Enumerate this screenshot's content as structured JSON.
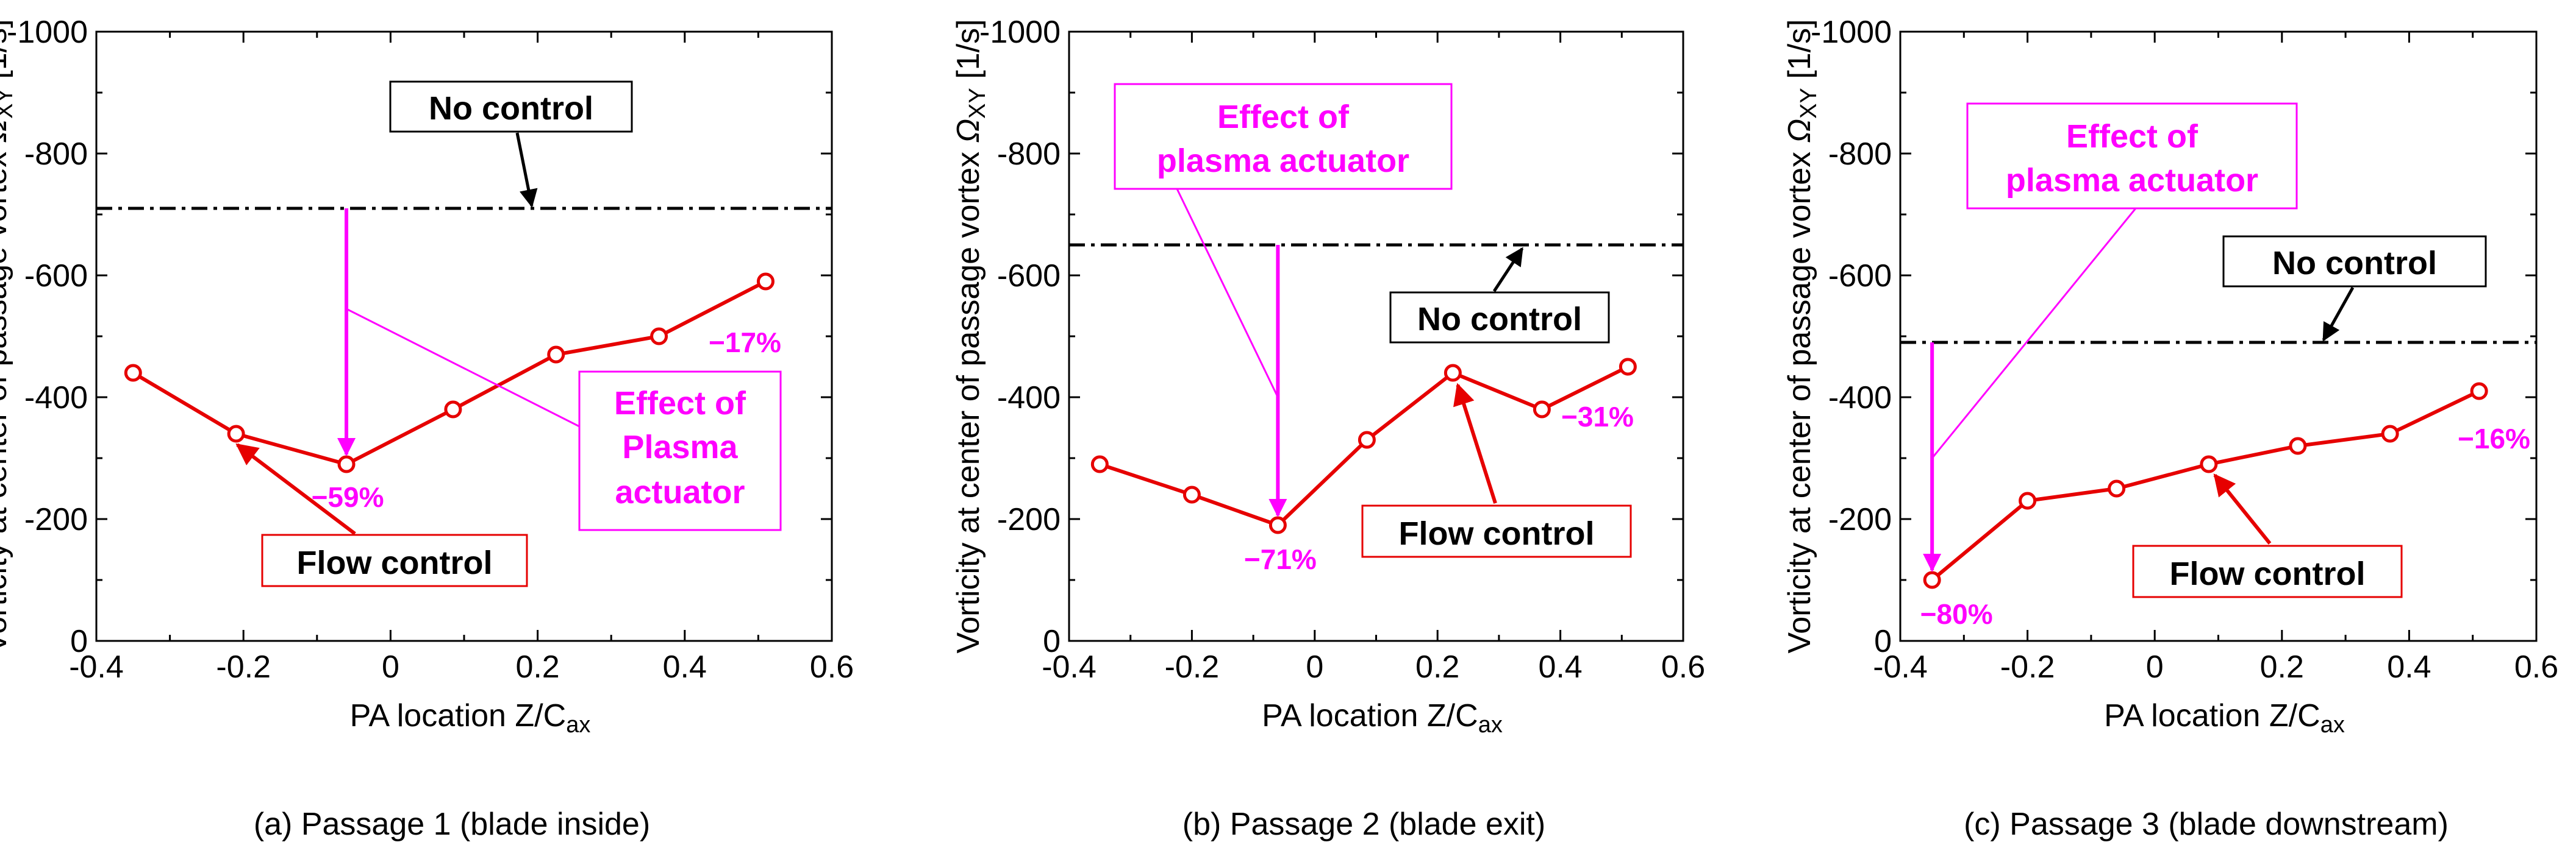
{
  "figure": {
    "colors": {
      "flow_control": "#e60000",
      "effect": "#ff00ff",
      "no_control": "#000000",
      "axes": "#000000"
    },
    "xlabel": "PA location Z/C",
    "xlabel_sub": "ax",
    "ylabel": "Vorticity at center of passage vortex",
    "ylabel_symbol": "Ω",
    "ylabel_sub": "XY",
    "ylabel_unit": "[1/s]"
  },
  "chart_data": [
    {
      "type": "line",
      "title": "(a) Passage 1 (blade inside)",
      "x": [
        -0.35,
        -0.21,
        -0.06,
        0.085,
        0.225,
        0.365,
        0.51
      ],
      "y": [
        -440,
        -340,
        -290,
        -380,
        -470,
        -500,
        -590
      ],
      "xlim": [
        -0.4,
        0.6
      ],
      "ylim": [
        0,
        -1000
      ],
      "xticks": [
        "-0.4",
        "-0.2",
        "0",
        "0.2",
        "0.4",
        "0.6"
      ],
      "yticks": [
        "0",
        "-200",
        "-400",
        "-600",
        "-800",
        "-1000"
      ],
      "no_control": -710,
      "labels": {
        "no_control": "No control",
        "flow_control": "Flow control",
        "effect_line1": "Effect of",
        "effect_line2": "Plasma",
        "effect_line3": "actuator",
        "pct_min": "−59%",
        "pct_end": "−17%"
      }
    },
    {
      "type": "line",
      "title": "(b) Passage 2 (blade exit)",
      "x": [
        -0.35,
        -0.2,
        -0.06,
        0.085,
        0.225,
        0.37,
        0.51
      ],
      "y": [
        -290,
        -240,
        -190,
        -330,
        -440,
        -380,
        -450
      ],
      "xlim": [
        -0.4,
        0.6
      ],
      "ylim": [
        0,
        -1000
      ],
      "xticks": [
        "-0.4",
        "-0.2",
        "0",
        "0.2",
        "0.4",
        "0.6"
      ],
      "yticks": [
        "0",
        "-200",
        "-400",
        "-600",
        "-800",
        "-1000"
      ],
      "no_control": -650,
      "labels": {
        "no_control": "No control",
        "flow_control": "Flow control",
        "effect_line1": "Effect of",
        "effect_line2": "plasma actuator",
        "pct_min": "−71%",
        "pct_end": "−31%"
      }
    },
    {
      "type": "line",
      "title": "(c) Passage 3 (blade downstream)",
      "x": [
        -0.35,
        -0.2,
        -0.06,
        0.085,
        0.225,
        0.37,
        0.51
      ],
      "y": [
        -100,
        -230,
        -250,
        -290,
        -320,
        -340,
        -410
      ],
      "xlim": [
        -0.4,
        0.6
      ],
      "ylim": [
        0,
        -1000
      ],
      "xticks": [
        "-0.4",
        "-0.2",
        "0",
        "0.2",
        "0.4",
        "0.6"
      ],
      "yticks": [
        "0",
        "-200",
        "-400",
        "-600",
        "-800",
        "-1000"
      ],
      "no_control": -490,
      "labels": {
        "no_control": "No control",
        "flow_control": "Flow control",
        "effect_line1": "Effect of",
        "effect_line2": "plasma actuator",
        "pct_min": "−80%",
        "pct_end": "−16%"
      }
    }
  ]
}
